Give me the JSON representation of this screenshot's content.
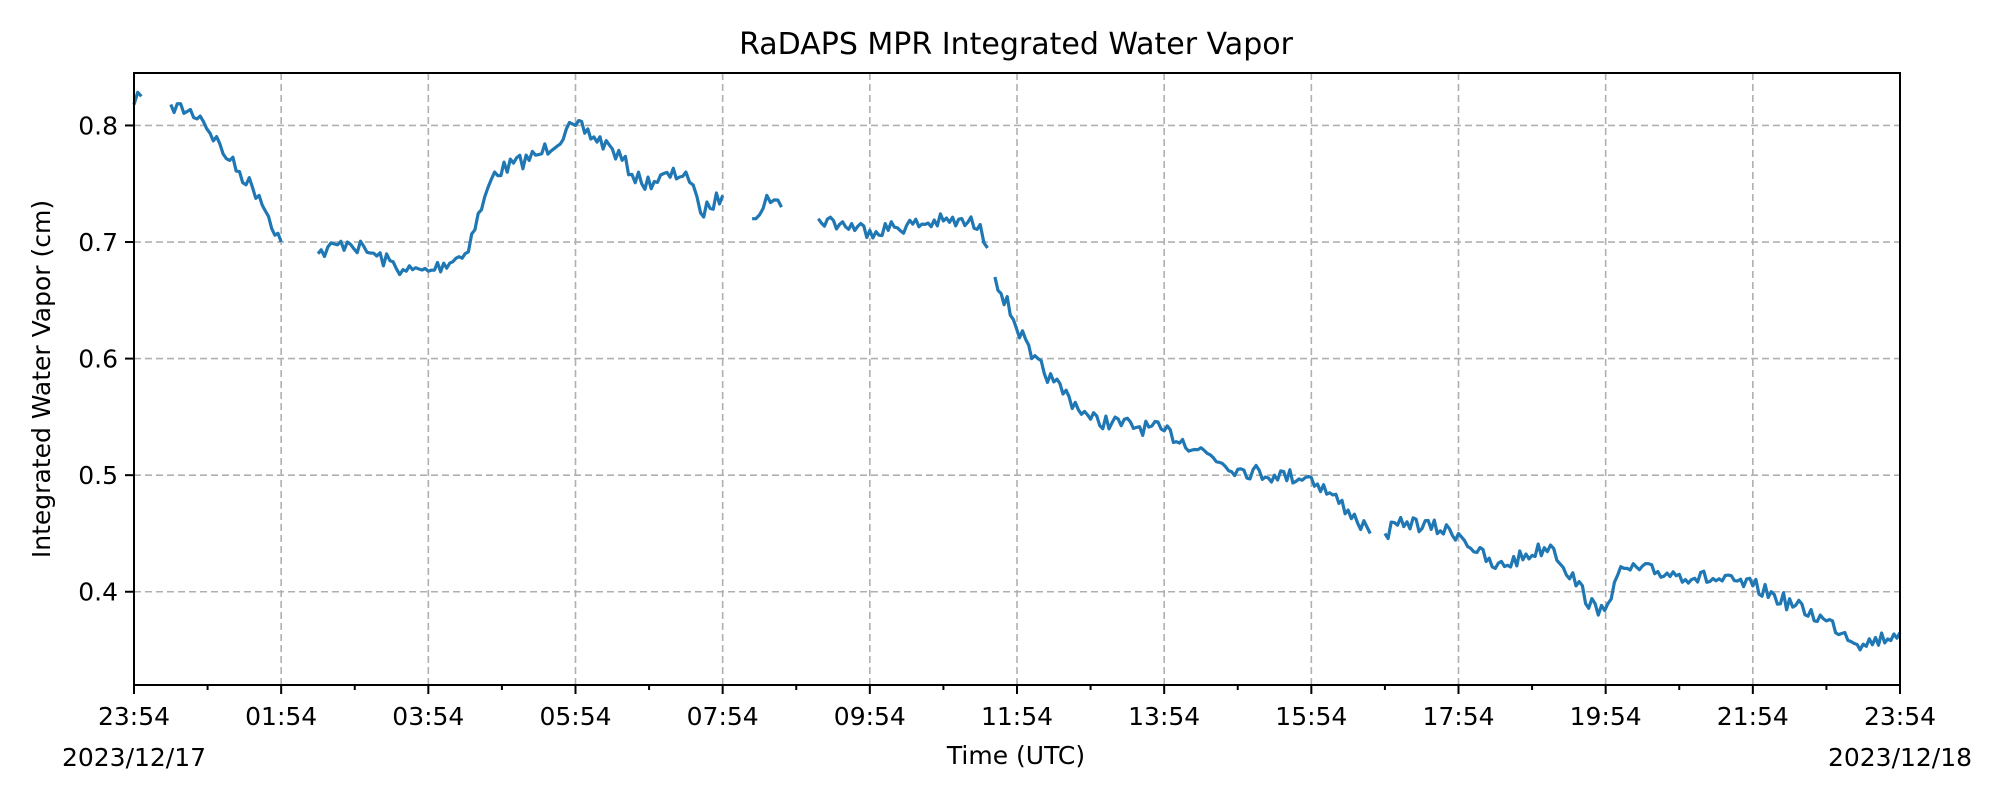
{
  "chart_data": {
    "type": "line",
    "title": "RaDAPS MPR Integrated Water Vapor",
    "xlabel": "Time (UTC)",
    "ylabel": "Integrated Water Vapor (cm)",
    "x_start_label": "2023/12/17",
    "x_end_label": "2023/12/18",
    "x_ticks": [
      "23:54",
      "01:54",
      "03:54",
      "05:54",
      "07:54",
      "09:54",
      "11:54",
      "13:54",
      "15:54",
      "17:54",
      "19:54",
      "21:54",
      "23:54"
    ],
    "xlim": [
      "2023-12-17 23:54",
      "2023-12-18 23:54"
    ],
    "ylim": [
      0.32,
      0.845
    ],
    "y_ticks": [
      0.4,
      0.5,
      0.6,
      0.7,
      0.8
    ],
    "grid": true,
    "series": [
      {
        "name": "",
        "color": "#1f77b4",
        "segments": [
          [
            [
              "2023-12-17 23:54",
              0.818
            ],
            [
              "2023-12-18 00:00",
              0.825
            ]
          ],
          [
            [
              "2023-12-18 00:24",
              0.818
            ],
            [
              "2023-12-18 00:48",
              0.808
            ],
            [
              "2023-12-18 01:12",
              0.77
            ],
            [
              "2023-12-18 01:36",
              0.74
            ],
            [
              "2023-12-18 01:54",
              0.7
            ]
          ],
          [
            [
              "2023-12-18 02:24",
              0.69
            ],
            [
              "2023-12-18 02:48",
              0.7
            ],
            [
              "2023-12-18 03:12",
              0.688
            ],
            [
              "2023-12-18 03:36",
              0.675
            ],
            [
              "2023-12-18 03:54",
              0.675
            ],
            [
              "2023-12-18 04:24",
              0.69
            ],
            [
              "2023-12-18 04:48",
              0.76
            ],
            [
              "2023-12-18 05:24",
              0.775
            ],
            [
              "2023-12-18 05:54",
              0.8
            ],
            [
              "2023-12-18 06:24",
              0.78
            ],
            [
              "2023-12-18 06:48",
              0.75
            ],
            [
              "2023-12-18 07:24",
              0.76
            ],
            [
              "2023-12-18 07:36",
              0.725
            ],
            [
              "2023-12-18 07:54",
              0.74
            ]
          ],
          [
            [
              "2023-12-18 08:18",
              0.72
            ],
            [
              "2023-12-18 08:30",
              0.74
            ],
            [
              "2023-12-18 08:42",
              0.73
            ]
          ],
          [
            [
              "2023-12-18 09:12",
              0.72
            ],
            [
              "2023-12-18 09:54",
              0.71
            ],
            [
              "2023-12-18 10:54",
              0.718
            ],
            [
              "2023-12-18 11:24",
              0.715
            ],
            [
              "2023-12-18 11:30",
              0.695
            ]
          ],
          [
            [
              "2023-12-18 11:36",
              0.67
            ],
            [
              "2023-12-18 12:06",
              0.6
            ],
            [
              "2023-12-18 12:24",
              0.58
            ],
            [
              "2023-12-18 12:54",
              0.548
            ],
            [
              "2023-12-18 13:54",
              0.538
            ],
            [
              "2023-12-18 14:54",
              0.505
            ],
            [
              "2023-12-18 15:24",
              0.5
            ],
            [
              "2023-12-18 15:54",
              0.498
            ],
            [
              "2023-12-18 16:24",
              0.47
            ],
            [
              "2023-12-18 16:42",
              0.45
            ]
          ],
          [
            [
              "2023-12-18 16:54",
              0.45
            ],
            [
              "2023-12-18 17:12",
              0.46
            ],
            [
              "2023-12-18 17:54",
              0.45
            ],
            [
              "2023-12-18 18:24",
              0.42
            ],
            [
              "2023-12-18 19:09",
              0.44
            ],
            [
              "2023-12-18 19:48",
              0.38
            ],
            [
              "2023-12-18 20:09",
              0.42
            ],
            [
              "2023-12-18 20:54",
              0.415
            ],
            [
              "2023-12-18 21:54",
              0.405
            ],
            [
              "2023-12-18 22:54",
              0.375
            ],
            [
              "2023-12-18 23:24",
              0.355
            ],
            [
              "2023-12-18 23:54",
              0.365
            ]
          ]
        ]
      }
    ]
  }
}
